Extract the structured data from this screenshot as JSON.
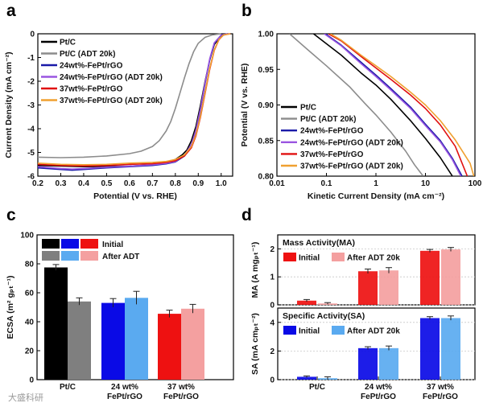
{
  "colors": {
    "ptc": "#000000",
    "ptc_adt": "#8c8c8c",
    "fept24": "#1a1aa8",
    "fept24_adt": "#9a55e0",
    "fept37": "#e01010",
    "fept37_adt": "#f0a030",
    "c_ptc": "#000000",
    "c_ptc_adt": "#7f7f7f",
    "c_24": "#0a0ae6",
    "c_24_adt": "#5aaaf0",
    "c_37": "#ee1111",
    "c_37_adt": "#f4a0a0"
  },
  "watermark": "大盛科研",
  "chart_data": [
    {
      "panel": "a",
      "type": "line",
      "xlabel": "Potential (V vs. RHE)",
      "ylabel": "Current Density (mA cm⁻²)",
      "xlim": [
        0.2,
        1.05
      ],
      "ylim": [
        -6,
        0
      ],
      "xticks": [
        "0.2",
        "0.3",
        "0.4",
        "0.5",
        "0.6",
        "0.7",
        "0.8",
        "0.9",
        "1.0"
      ],
      "yticks": [
        "0",
        "-1",
        "-2",
        "-3",
        "-4",
        "-5",
        "-6"
      ],
      "series": [
        {
          "name": "Pt/C",
          "color_key": "ptc",
          "x": [
            0.2,
            0.4,
            0.6,
            0.7,
            0.75,
            0.8,
            0.83,
            0.85,
            0.87,
            0.89,
            0.91,
            0.93,
            0.95,
            0.97,
            1.0,
            1.03
          ],
          "y": [
            -5.55,
            -5.6,
            -5.58,
            -5.52,
            -5.45,
            -5.3,
            -5.1,
            -4.9,
            -4.5,
            -3.9,
            -3.0,
            -2.0,
            -1.1,
            -0.45,
            -0.08,
            0
          ]
        },
        {
          "name": "Pt/C (ADT 20k)",
          "color_key": "ptc_adt",
          "x": [
            0.2,
            0.3,
            0.4,
            0.5,
            0.6,
            0.65,
            0.7,
            0.73,
            0.76,
            0.78,
            0.8,
            0.82,
            0.84,
            0.86,
            0.88,
            0.9,
            0.93,
            0.96,
            1.0
          ],
          "y": [
            -5.2,
            -5.22,
            -5.2,
            -5.15,
            -5.05,
            -4.95,
            -4.75,
            -4.5,
            -4.1,
            -3.7,
            -3.15,
            -2.5,
            -1.85,
            -1.25,
            -0.75,
            -0.4,
            -0.15,
            -0.05,
            0
          ]
        },
        {
          "name": "24wt%-FePt/rGO",
          "color_key": "fept24",
          "x": [
            0.2,
            0.3,
            0.35,
            0.4,
            0.5,
            0.6,
            0.7,
            0.76,
            0.8,
            0.84,
            0.87,
            0.89,
            0.91,
            0.93,
            0.95,
            0.97,
            1.0,
            1.03
          ],
          "y": [
            -5.65,
            -5.72,
            -5.75,
            -5.72,
            -5.65,
            -5.6,
            -5.55,
            -5.48,
            -5.4,
            -5.15,
            -4.7,
            -4.1,
            -3.2,
            -2.1,
            -1.1,
            -0.4,
            -0.05,
            0
          ]
        },
        {
          "name": "24wt%-FePt/rGO (ADT 20k)",
          "color_key": "fept24_adt",
          "x": [
            0.2,
            0.3,
            0.35,
            0.4,
            0.5,
            0.6,
            0.7,
            0.76,
            0.8,
            0.84,
            0.87,
            0.89,
            0.91,
            0.93,
            0.95,
            0.97,
            1.0,
            1.03
          ],
          "y": [
            -5.6,
            -5.68,
            -5.7,
            -5.68,
            -5.62,
            -5.58,
            -5.52,
            -5.46,
            -5.38,
            -5.12,
            -4.65,
            -4.05,
            -3.15,
            -2.05,
            -1.05,
            -0.38,
            -0.05,
            0
          ]
        },
        {
          "name": "37wt%-FePt/rGO",
          "color_key": "fept37",
          "x": [
            0.2,
            0.3,
            0.4,
            0.5,
            0.6,
            0.7,
            0.76,
            0.8,
            0.84,
            0.87,
            0.89,
            0.91,
            0.93,
            0.95,
            0.97,
            0.99,
            1.01,
            1.04
          ],
          "y": [
            -5.5,
            -5.55,
            -5.57,
            -5.55,
            -5.5,
            -5.47,
            -5.42,
            -5.35,
            -5.15,
            -4.8,
            -4.3,
            -3.5,
            -2.5,
            -1.5,
            -0.7,
            -0.25,
            -0.05,
            0
          ]
        },
        {
          "name": "37wt%-FePt/rGO (ADT 20k)",
          "color_key": "fept37_adt",
          "x": [
            0.2,
            0.3,
            0.4,
            0.5,
            0.6,
            0.7,
            0.76,
            0.8,
            0.84,
            0.87,
            0.89,
            0.91,
            0.93,
            0.95,
            0.97,
            0.99,
            1.01,
            1.04
          ],
          "y": [
            -5.45,
            -5.5,
            -5.52,
            -5.5,
            -5.45,
            -5.42,
            -5.38,
            -5.3,
            -5.1,
            -4.75,
            -4.25,
            -3.45,
            -2.45,
            -1.45,
            -0.68,
            -0.24,
            -0.05,
            0
          ]
        }
      ]
    },
    {
      "panel": "b",
      "type": "line",
      "xlabel": "Kinetic Current Density (mA cm⁻²)",
      "ylabel": "Potential (V vs. RHE)",
      "xscale": "log",
      "xlim": [
        0.01,
        100
      ],
      "ylim": [
        0.8,
        1.0
      ],
      "xticks": [
        "0.01",
        "0.1",
        "1",
        "10",
        "100"
      ],
      "yticks": [
        "1.00",
        "0.95",
        "0.90",
        "0.85",
        "0.80"
      ],
      "series": [
        {
          "name": "Pt/C",
          "color_key": "ptc",
          "x": [
            0.055,
            0.1,
            0.2,
            0.5,
            1,
            2,
            5,
            10,
            20,
            35
          ],
          "y": [
            1.0,
            0.986,
            0.97,
            0.945,
            0.928,
            0.908,
            0.878,
            0.853,
            0.826,
            0.8
          ]
        },
        {
          "name": "Pt/C (ADT 20k)",
          "color_key": "ptc_adt",
          "x": [
            0.018,
            0.05,
            0.1,
            0.3,
            0.6,
            1,
            2,
            4,
            6,
            9
          ],
          "y": [
            1.0,
            0.973,
            0.955,
            0.925,
            0.902,
            0.886,
            0.862,
            0.835,
            0.816,
            0.8
          ]
        },
        {
          "name": "24wt%-FePt/rGO",
          "color_key": "fept24",
          "x": [
            0.095,
            0.2,
            0.5,
            1,
            2,
            5,
            10,
            20,
            35,
            55
          ],
          "y": [
            1.0,
            0.984,
            0.96,
            0.942,
            0.923,
            0.897,
            0.873,
            0.85,
            0.825,
            0.8
          ]
        },
        {
          "name": "24wt%-FePt/rGO (ADT 20k)",
          "color_key": "fept24_adt",
          "x": [
            0.09,
            0.2,
            0.5,
            1,
            2,
            5,
            10,
            20,
            35,
            52
          ],
          "y": [
            1.0,
            0.983,
            0.958,
            0.94,
            0.921,
            0.895,
            0.871,
            0.848,
            0.823,
            0.8
          ]
        },
        {
          "name": "37wt%-FePt/rGO",
          "color_key": "fept37",
          "x": [
            0.11,
            0.2,
            0.5,
            1,
            2,
            5,
            10,
            20,
            40,
            70
          ],
          "y": [
            1.0,
            0.99,
            0.968,
            0.952,
            0.936,
            0.914,
            0.895,
            0.872,
            0.842,
            0.8
          ]
        },
        {
          "name": "37wt%-FePt/rGO (ADT 20k)",
          "color_key": "fept37_adt",
          "x": [
            0.12,
            0.2,
            0.5,
            1,
            2,
            5,
            10,
            20,
            40,
            80,
            95
          ],
          "y": [
            1.0,
            0.991,
            0.97,
            0.955,
            0.94,
            0.918,
            0.9,
            0.878,
            0.851,
            0.818,
            0.8
          ]
        }
      ]
    },
    {
      "panel": "c",
      "type": "bar",
      "ylabel": "ECSA (m² gₚₜ⁻¹)",
      "ylim": [
        0,
        100
      ],
      "yticks": [
        "0",
        "20",
        "40",
        "60",
        "80",
        "100"
      ],
      "categories": [
        "Pt/C",
        "24 wt%\nFePt/rGO",
        "37 wt%\nFePt/rGO"
      ],
      "legend": [
        "Initial",
        "After ADT"
      ],
      "series": [
        {
          "name": "Initial",
          "values": [
            77.5,
            53,
            45.5
          ],
          "errors": [
            2,
            3,
            2.5
          ],
          "color_keys": [
            "c_ptc",
            "c_24",
            "c_37"
          ]
        },
        {
          "name": "After ADT",
          "values": [
            54,
            56.5,
            49
          ],
          "errors": [
            2.5,
            4.5,
            3
          ],
          "color_keys": [
            "c_ptc_adt",
            "c_24_adt",
            "c_37_adt"
          ]
        }
      ]
    },
    {
      "panel": "d",
      "type": "bar",
      "categories": [
        "Pt/C",
        "24 wt%\nFePt/rGO",
        "37 wt%\nFePt/rGO"
      ],
      "subplots": [
        {
          "title": "Mass Activity(MA)",
          "ylabel": "MA (A mgₚₜ⁻¹)",
          "ylim": [
            0,
            2.5
          ],
          "yticks": [
            "0",
            "1",
            "2"
          ],
          "legend": [
            "Initial",
            "After ADT 20k"
          ],
          "series": [
            {
              "name": "Initial",
              "values": [
                0.15,
                1.2,
                1.93
              ],
              "errors": [
                0.04,
                0.08,
                0.05
              ],
              "color_key": "c_37"
            },
            {
              "name": "After ADT 20k",
              "values": [
                0.05,
                1.23,
                1.98
              ],
              "errors": [
                0.03,
                0.1,
                0.07
              ],
              "color_key": "c_37_adt"
            }
          ]
        },
        {
          "title": "Specific Activity(SA)",
          "ylabel": "SA (mA cmₚₜ⁻²)",
          "ylim": [
            0,
            5
          ],
          "yticks": [
            "0",
            "2",
            "4"
          ],
          "legend": [
            "Initial",
            "After ADT 20k"
          ],
          "series": [
            {
              "name": "Initial",
              "values": [
                0.2,
                2.2,
                4.3
              ],
              "errors": [
                0.06,
                0.1,
                0.1
              ],
              "color_key": "c_24"
            },
            {
              "name": "After ADT 20k",
              "values": [
                0.1,
                2.2,
                4.3
              ],
              "errors": [
                0.1,
                0.15,
                0.15
              ],
              "color_key": "c_24_adt"
            }
          ]
        }
      ]
    }
  ]
}
